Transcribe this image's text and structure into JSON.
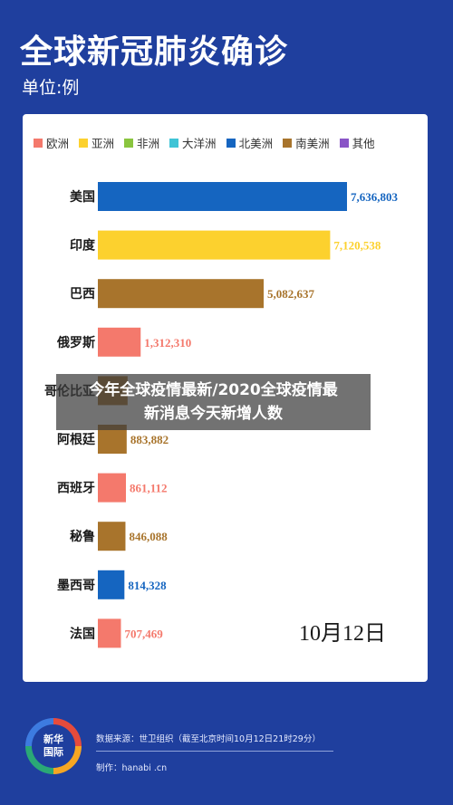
{
  "header": {
    "title": "全球新冠肺炎确诊",
    "unit": "单位:例"
  },
  "colors": {
    "europe": "#f4796c",
    "asia": "#fcd12e",
    "africa": "#8ac53f",
    "oceania": "#3fc4d6",
    "north_america": "#1565c0",
    "south_america": "#a8742c",
    "other": "#8a55c7"
  },
  "chart_data": {
    "type": "bar",
    "orientation": "horizontal",
    "title": "全球新冠肺炎确诊",
    "unit": "单位:例",
    "legend": [
      {
        "name": "欧洲",
        "color_key": "europe"
      },
      {
        "name": "亚洲",
        "color_key": "asia"
      },
      {
        "name": "非洲",
        "color_key": "africa"
      },
      {
        "name": "大洋洲",
        "color_key": "oceania"
      },
      {
        "name": "北美洲",
        "color_key": "north_america"
      },
      {
        "name": "南美洲",
        "color_key": "south_america"
      },
      {
        "name": "其他",
        "color_key": "other"
      }
    ],
    "legend_position": "top",
    "categories": [
      "美国",
      "印度",
      "巴西",
      "俄罗斯",
      "哥伦比亚",
      "阿根廷",
      "西班牙",
      "秘鲁",
      "墨西哥",
      "法国"
    ],
    "values": [
      7636803,
      7120538,
      5082637,
      1312310,
      911316,
      883882,
      861112,
      846088,
      814328,
      707469
    ],
    "labels": [
      "7,636,803",
      "7,120,538",
      "5,082,637",
      "1,312,310",
      "",
      "883,882",
      "861,112",
      "846,088",
      "814,328",
      "707,469"
    ],
    "region_keys": [
      "north_america",
      "asia",
      "south_america",
      "europe",
      "south_america",
      "south_america",
      "europe",
      "south_america",
      "north_america",
      "europe"
    ],
    "xlim": [
      0,
      7636803
    ],
    "grid": false,
    "date_note": "10月12日"
  },
  "overlay": {
    "line1": "今年全球疫情最新/2020全球疫情最",
    "line2": "新消息今天新增人数"
  },
  "footer": {
    "logo_text": "新华\n国际",
    "source": "数据来源：世卫组织（截至北京时间10月12日21时29分）",
    "maker": "制作：hanabi .cn"
  }
}
